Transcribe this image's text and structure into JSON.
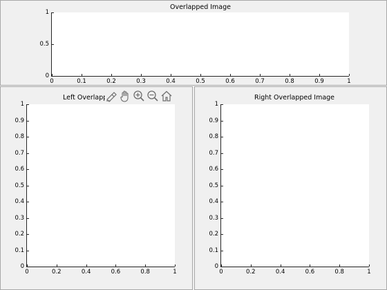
{
  "panels": [
    {
      "id": "top",
      "title": "Overlapped Image",
      "x_ticks": [
        "0",
        "0.1",
        "0.2",
        "0.3",
        "0.4",
        "0.5",
        "0.6",
        "0.7",
        "0.8",
        "0.9",
        "1"
      ],
      "y_ticks": [
        "0",
        "0.5",
        "1"
      ]
    },
    {
      "id": "left",
      "title": "Left Overlapped Image",
      "x_ticks": [
        "0",
        "0.2",
        "0.4",
        "0.6",
        "0.8",
        "1"
      ],
      "y_ticks": [
        "0",
        "0.1",
        "0.2",
        "0.3",
        "0.4",
        "0.5",
        "0.6",
        "0.7",
        "0.8",
        "0.9",
        "1"
      ]
    },
    {
      "id": "right",
      "title": "Right Overlapped Image",
      "x_ticks": [
        "0",
        "0.2",
        "0.4",
        "0.6",
        "0.8",
        "1"
      ],
      "y_ticks": [
        "0",
        "0.1",
        "0.2",
        "0.3",
        "0.4",
        "0.5",
        "0.6",
        "0.7",
        "0.8",
        "0.9",
        "1"
      ]
    }
  ],
  "toolbar": {
    "buttons": [
      {
        "name": "brush-icon"
      },
      {
        "name": "pan-icon"
      },
      {
        "name": "zoom-in-icon"
      },
      {
        "name": "zoom-out-icon"
      },
      {
        "name": "home-icon"
      }
    ]
  },
  "colors": {
    "background": "#f0f0f0",
    "axes": "#262626",
    "plot": "#ffffff",
    "icon": "#6e6e6e"
  }
}
